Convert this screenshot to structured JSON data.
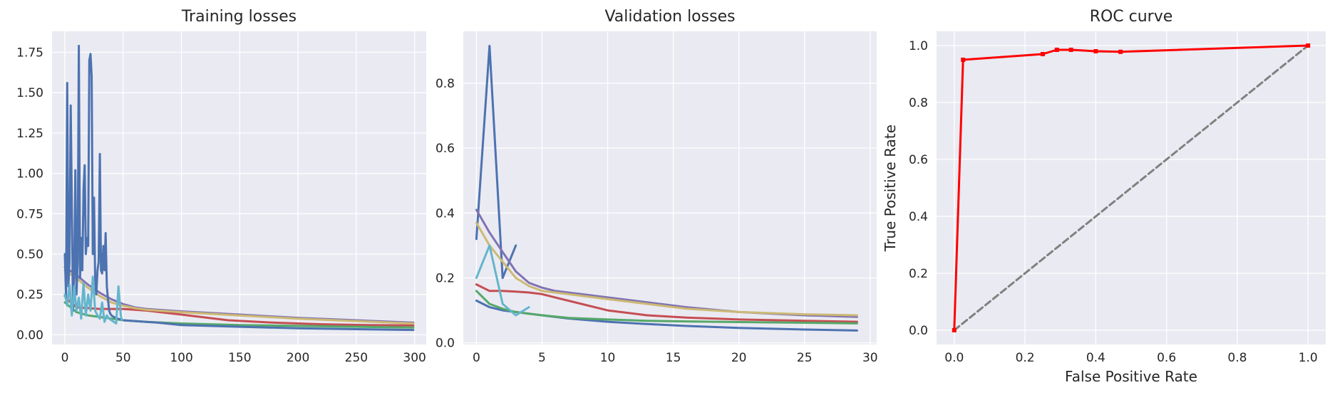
{
  "chart_data": [
    {
      "type": "line",
      "title": "Training losses",
      "xlabel": "",
      "ylabel": "",
      "xlim": [
        -11,
        310
      ],
      "ylim": [
        -0.06,
        1.88
      ],
      "xticks": [
        0,
        50,
        100,
        150,
        200,
        250,
        300
      ],
      "xtick_labels": [
        "0",
        "50",
        "100",
        "150",
        "200",
        "250",
        "300"
      ],
      "yticks": [
        0.0,
        0.25,
        0.5,
        0.75,
        1.0,
        1.25,
        1.5,
        1.75
      ],
      "ytick_labels": [
        "0.00",
        "0.25",
        "0.50",
        "0.75",
        "1.00",
        "1.25",
        "1.50",
        "1.75"
      ],
      "grid": true,
      "series": [
        {
          "color": "#c44e52",
          "x": [
            0,
            5,
            10,
            20,
            30,
            50,
            70,
            100,
            140,
            180,
            220,
            260,
            299
          ],
          "y": [
            0.24,
            0.2,
            0.17,
            0.165,
            0.16,
            0.16,
            0.15,
            0.125,
            0.09,
            0.075,
            0.065,
            0.06,
            0.058
          ]
        },
        {
          "color": "#8172b2",
          "x": [
            0,
            10,
            20,
            30,
            40,
            50,
            60,
            70,
            100,
            150,
            200,
            250,
            299
          ],
          "y": [
            0.42,
            0.37,
            0.31,
            0.26,
            0.22,
            0.19,
            0.17,
            0.16,
            0.145,
            0.125,
            0.105,
            0.09,
            0.075
          ]
        },
        {
          "color": "#ccb974",
          "x": [
            0,
            10,
            20,
            30,
            40,
            50,
            60,
            70,
            100,
            150,
            200,
            250,
            299
          ],
          "y": [
            0.4,
            0.35,
            0.29,
            0.24,
            0.2,
            0.18,
            0.165,
            0.155,
            0.14,
            0.12,
            0.1,
            0.085,
            0.07
          ]
        },
        {
          "color": "#55a868",
          "x": [
            0,
            10,
            20,
            30,
            40,
            50,
            70,
            100,
            150,
            200,
            250,
            299
          ],
          "y": [
            0.2,
            0.14,
            0.12,
            0.11,
            0.1,
            0.09,
            0.08,
            0.07,
            0.06,
            0.055,
            0.05,
            0.045
          ]
        },
        {
          "color": "#4c72b0",
          "x": [
            0,
            1,
            2,
            3,
            4,
            5,
            6,
            7,
            8,
            9,
            10,
            11,
            12,
            13,
            14,
            15,
            16,
            17,
            18,
            19,
            20,
            21,
            22,
            23,
            24,
            25,
            26,
            27,
            28,
            29,
            30,
            31,
            32,
            33,
            34,
            35,
            36,
            37,
            38,
            39,
            40,
            42,
            45,
            48,
            50,
            60,
            80,
            100,
            150,
            200,
            250,
            299
          ],
          "y": [
            0.5,
            0.24,
            1.56,
            0.3,
            0.45,
            1.42,
            0.8,
            0.15,
            0.4,
            1.02,
            0.25,
            0.45,
            1.79,
            0.35,
            0.6,
            0.4,
            0.9,
            1.05,
            0.5,
            0.6,
            0.55,
            1.7,
            1.74,
            1.6,
            0.5,
            0.85,
            0.35,
            0.25,
            0.4,
            0.45,
            1.12,
            0.4,
            0.38,
            0.55,
            0.4,
            0.63,
            0.3,
            0.22,
            0.15,
            0.13,
            0.12,
            0.11,
            0.1,
            0.095,
            0.09,
            0.085,
            0.075,
            0.06,
            0.05,
            0.04,
            0.035,
            0.03
          ]
        },
        {
          "color": "#64b5cd",
          "x": [
            0,
            2,
            4,
            6,
            8,
            10,
            12,
            14,
            16,
            18,
            20,
            22,
            24,
            26,
            28,
            30,
            32,
            34,
            36,
            38,
            40,
            42,
            44,
            46,
            48,
            49
          ],
          "y": [
            0.25,
            0.18,
            0.31,
            0.12,
            0.3,
            0.15,
            0.23,
            0.1,
            0.32,
            0.12,
            0.25,
            0.15,
            0.36,
            0.15,
            0.12,
            0.1,
            0.2,
            0.08,
            0.12,
            0.1,
            0.09,
            0.08,
            0.07,
            0.3,
            0.12,
            0.09
          ]
        }
      ]
    },
    {
      "type": "line",
      "title": "Validation losses",
      "xlabel": "",
      "ylabel": "",
      "xlim": [
        -1,
        30.5
      ],
      "ylim": [
        -0.005,
        0.96
      ],
      "xticks": [
        0,
        5,
        10,
        15,
        20,
        25,
        30
      ],
      "xtick_labels": [
        "0",
        "5",
        "10",
        "15",
        "20",
        "25",
        "30"
      ],
      "yticks": [
        0.0,
        0.2,
        0.4,
        0.6,
        0.8
      ],
      "ytick_labels": [
        "0.0",
        "0.2",
        "0.4",
        "0.6",
        "0.8"
      ],
      "grid": true,
      "series": [
        {
          "color": "#4c72b0",
          "x": [
            0,
            1,
            2,
            3
          ],
          "y": [
            0.32,
            0.915,
            0.2,
            0.3
          ]
        },
        {
          "color": "#4c72b0",
          "x": [
            0,
            1,
            2,
            3,
            4,
            5,
            7,
            10,
            13,
            16,
            20,
            25,
            29
          ],
          "y": [
            0.13,
            0.11,
            0.1,
            0.095,
            0.09,
            0.085,
            0.075,
            0.065,
            0.058,
            0.052,
            0.046,
            0.041,
            0.038
          ]
        },
        {
          "color": "#8172b2",
          "x": [
            0,
            1,
            2,
            3,
            4,
            5,
            6,
            8,
            10,
            13,
            16,
            20,
            25,
            29
          ],
          "y": [
            0.41,
            0.34,
            0.28,
            0.22,
            0.185,
            0.17,
            0.16,
            0.15,
            0.14,
            0.125,
            0.11,
            0.095,
            0.085,
            0.08
          ]
        },
        {
          "color": "#ccb974",
          "x": [
            0,
            1,
            2,
            3,
            4,
            5,
            6,
            8,
            10,
            13,
            16,
            20,
            25,
            29
          ],
          "y": [
            0.37,
            0.3,
            0.25,
            0.2,
            0.175,
            0.16,
            0.155,
            0.145,
            0.135,
            0.12,
            0.105,
            0.095,
            0.088,
            0.085
          ]
        },
        {
          "color": "#c44e52",
          "x": [
            0,
            1,
            2,
            3,
            4,
            5,
            6,
            8,
            10,
            13,
            16,
            20,
            25,
            29
          ],
          "y": [
            0.18,
            0.16,
            0.16,
            0.158,
            0.155,
            0.15,
            0.14,
            0.12,
            0.1,
            0.085,
            0.078,
            0.072,
            0.068,
            0.065
          ]
        },
        {
          "color": "#55a868",
          "x": [
            0,
            1,
            2,
            3,
            4,
            5,
            7,
            10,
            13,
            16,
            20,
            25,
            29
          ],
          "y": [
            0.16,
            0.12,
            0.105,
            0.095,
            0.09,
            0.085,
            0.077,
            0.072,
            0.068,
            0.066,
            0.064,
            0.062,
            0.06
          ]
        },
        {
          "color": "#64b5cd",
          "x": [
            0,
            1,
            2,
            3,
            4
          ],
          "y": [
            0.2,
            0.3,
            0.12,
            0.085,
            0.11
          ]
        }
      ]
    },
    {
      "type": "line",
      "title": "ROC curve",
      "xlabel": "False Positive Rate",
      "ylabel": "True Positive Rate",
      "xlim": [
        -0.05,
        1.05
      ],
      "ylim": [
        -0.05,
        1.05
      ],
      "xticks": [
        0.0,
        0.2,
        0.4,
        0.6,
        0.8,
        1.0
      ],
      "xtick_labels": [
        "0.0",
        "0.2",
        "0.4",
        "0.6",
        "0.8",
        "1.0"
      ],
      "yticks": [
        0.0,
        0.2,
        0.4,
        0.6,
        0.8,
        1.0
      ],
      "ytick_labels": [
        "0.0",
        "0.2",
        "0.4",
        "0.6",
        "0.8",
        "1.0"
      ],
      "grid": true,
      "series": [
        {
          "color": "#808080",
          "dashed": true,
          "x": [
            0,
            1
          ],
          "y": [
            0,
            1
          ]
        },
        {
          "color": "#ff0000",
          "markers": true,
          "x": [
            0.0,
            0.025,
            0.25,
            0.29,
            0.33,
            0.4,
            0.47,
            1.0
          ],
          "y": [
            0.0,
            0.95,
            0.97,
            0.985,
            0.985,
            0.98,
            0.978,
            1.0
          ]
        }
      ]
    }
  ]
}
